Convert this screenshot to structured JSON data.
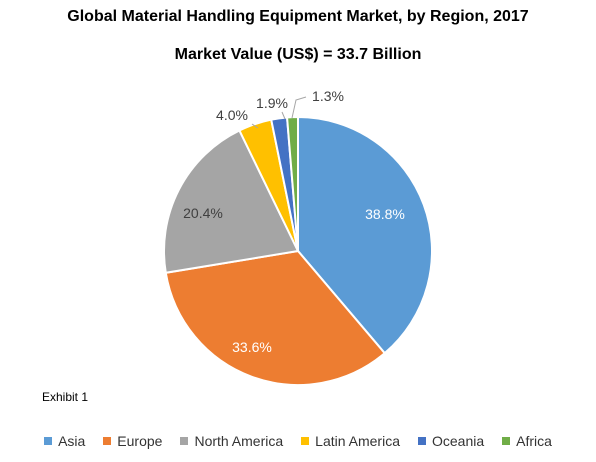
{
  "chart_data": {
    "type": "pie",
    "title": "Global Material Handling Equipment Market, by Region, 2017",
    "subtitle": "Market Value (US$) = 33.7 Billion",
    "categories": [
      "Asia",
      "Europe",
      "North America",
      "Latin America",
      "Oceania",
      "Africa"
    ],
    "values": [
      38.8,
      33.6,
      20.4,
      4.0,
      1.9,
      1.3
    ],
    "data_labels": [
      "38.8%",
      "33.6%",
      "20.4%",
      "4.0%",
      "1.9%",
      "1.3%"
    ],
    "colors": [
      "#5B9BD5",
      "#ED7D31",
      "#A5A5A5",
      "#FFC000",
      "#4472C4",
      "#70AD47"
    ],
    "label_colors": [
      "#ffffff",
      "#ffffff",
      "#404040",
      "#404040",
      "#404040",
      "#404040"
    ],
    "legend_position": "bottom"
  },
  "footnote": "Exhibit 1"
}
